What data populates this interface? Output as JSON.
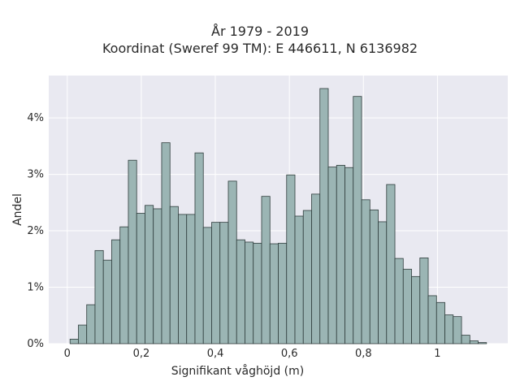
{
  "chart_data": {
    "type": "bar",
    "subtype": "histogram",
    "title_lines": [
      "År 1979 - 2019",
      "Koordinat (Sweref 99 TM): E 446611, N 6136982"
    ],
    "xlabel": "Signifikant våghöjd (m)",
    "ylabel": "Andel",
    "xlim": [
      -0.05,
      1.19
    ],
    "ylim": [
      0,
      0.0475
    ],
    "x_ticks": [
      {
        "value": 0,
        "label": "0"
      },
      {
        "value": 0.2,
        "label": "0,2"
      },
      {
        "value": 0.4,
        "label": "0,4"
      },
      {
        "value": 0.6,
        "label": "0,6"
      },
      {
        "value": 0.8,
        "label": "0,8"
      },
      {
        "value": 1,
        "label": "1"
      }
    ],
    "y_ticks": [
      {
        "value": 0,
        "label": "0%"
      },
      {
        "value": 0.01,
        "label": "1%"
      },
      {
        "value": 0.02,
        "label": "2%"
      },
      {
        "value": 0.03,
        "label": "3%"
      },
      {
        "value": 0.04,
        "label": "4%"
      }
    ],
    "bin_start": 0.0075,
    "bin_width": 0.0225,
    "values": [
      0.0008,
      0.0033,
      0.0069,
      0.0165,
      0.0148,
      0.0184,
      0.0207,
      0.0325,
      0.0231,
      0.0245,
      0.0239,
      0.0356,
      0.0243,
      0.0229,
      0.0229,
      0.0338,
      0.0206,
      0.0215,
      0.0215,
      0.0288,
      0.0184,
      0.018,
      0.0178,
      0.0261,
      0.0177,
      0.0178,
      0.0299,
      0.0226,
      0.0236,
      0.0265,
      0.0452,
      0.0313,
      0.0316,
      0.0312,
      0.0438,
      0.0255,
      0.0237,
      0.0216,
      0.0282,
      0.0151,
      0.0132,
      0.0119,
      0.0152,
      0.0085,
      0.0073,
      0.0051,
      0.0048,
      0.0015,
      0.0005,
      0.0002
    ],
    "colors": {
      "bar_fill": "#9bb5b4",
      "bar_stroke": "#2f3d3c",
      "plot_bg": "#e9e9f1",
      "grid": "#ffffff"
    },
    "grid": true,
    "legend": "none"
  }
}
